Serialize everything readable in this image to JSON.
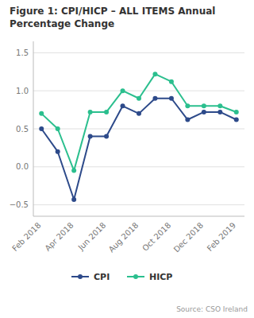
{
  "chart_data": {
    "type": "line",
    "title": "Figure 1: CPI/HICP – ALL ITEMS Annual\nPercentage Change",
    "source": "Source: CSO Ireland",
    "categories": [
      "Feb 2018",
      null,
      "Apr 2018",
      null,
      "Jun 2018",
      null,
      "Aug 2018",
      null,
      "Oct 2018",
      null,
      "Dec 2018",
      null,
      "Feb 2019"
    ],
    "series": [
      {
        "name": "CPI",
        "color": "#2d4a8a",
        "marker": "circle",
        "values": [
          0.5,
          0.2,
          -0.43,
          0.4,
          0.4,
          0.8,
          0.7,
          0.9,
          0.9,
          0.62,
          0.72,
          0.72,
          0.62
        ]
      },
      {
        "name": "HICP",
        "color": "#2bbf8e",
        "marker": "circle",
        "values": [
          0.7,
          0.5,
          -0.05,
          0.72,
          0.72,
          1.0,
          0.9,
          1.22,
          1.12,
          0.8,
          0.8,
          0.8,
          0.72
        ]
      }
    ],
    "ylim": [
      -0.65,
      1.65
    ],
    "yticks": [
      {
        "value": -0.5,
        "label": "−0.5"
      },
      {
        "value": 0,
        "label": "0.0"
      },
      0.5,
      {
        "value": 1,
        "label": "1.0"
      },
      1.5
    ],
    "grid": true,
    "legend": "bottom"
  }
}
